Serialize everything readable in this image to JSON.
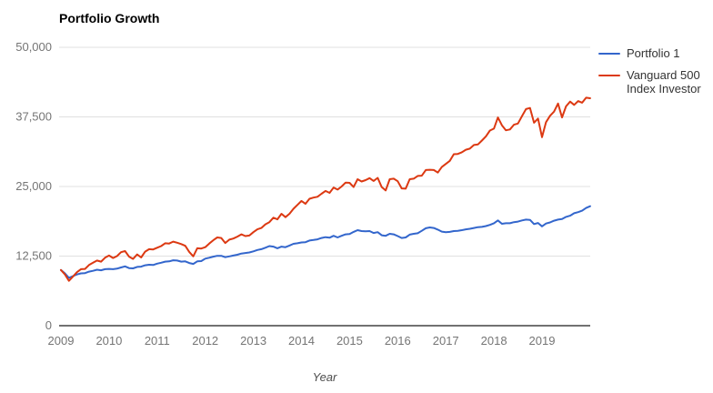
{
  "title": "Portfolio Growth",
  "legend": {
    "items": [
      {
        "label": "Portfolio 1",
        "color": "#3366cc"
      },
      {
        "label": "Vanguard 500 Index Investor",
        "color": "#dc3912"
      }
    ]
  },
  "colors": {
    "gridline": "#e0e0e0",
    "baseline": "#424242",
    "tick_text": "#757575"
  },
  "chart_data": {
    "type": "line",
    "title": "Portfolio Growth",
    "xlabel": "Year",
    "ylabel": "",
    "grid": true,
    "legend_position": "right",
    "xlim": [
      2009,
      2020.1
    ],
    "ylim": [
      0,
      50000
    ],
    "x_ticks": [
      2009,
      2010,
      2011,
      2012,
      2013,
      2014,
      2015,
      2016,
      2017,
      2018,
      2019
    ],
    "y_ticks": [
      0,
      12500,
      25000,
      37500,
      50000
    ],
    "y_tick_labels": [
      "0",
      "12,500",
      "25,000",
      "37,500",
      "50,000"
    ],
    "x_start": 2009.0,
    "x_step": 0.08333,
    "x_unit": "monthly portfolio value, Jan 2009 - Dec 2019, starting at 10000",
    "series": [
      {
        "name": "Portfolio 1",
        "color": "#3366cc",
        "values": [
          10000,
          9400,
          8600,
          8900,
          9200,
          9400,
          9450,
          9700,
          9850,
          10050,
          9950,
          10150,
          10200,
          10150,
          10250,
          10450,
          10650,
          10350,
          10300,
          10550,
          10600,
          10850,
          10950,
          10900,
          11150,
          11300,
          11500,
          11550,
          11750,
          11700,
          11500,
          11550,
          11250,
          11100,
          11550,
          11600,
          12050,
          12200,
          12400,
          12550,
          12550,
          12300,
          12450,
          12600,
          12750,
          12950,
          13050,
          13150,
          13350,
          13600,
          13750,
          14000,
          14300,
          14200,
          13900,
          14200,
          14100,
          14400,
          14700,
          14800,
          14950,
          15000,
          15300,
          15400,
          15500,
          15750,
          15900,
          15800,
          16150,
          15850,
          16150,
          16400,
          16450,
          16850,
          17150,
          17000,
          16950,
          17000,
          16650,
          16800,
          16250,
          16150,
          16500,
          16400,
          16100,
          15750,
          15850,
          16350,
          16500,
          16600,
          17050,
          17500,
          17650,
          17550,
          17250,
          16900,
          16800,
          16850,
          17000,
          17050,
          17150,
          17300,
          17400,
          17550,
          17700,
          17750,
          17900,
          18100,
          18400,
          18900,
          18300,
          18400,
          18400,
          18600,
          18700,
          18900,
          19050,
          19000,
          18250,
          18450,
          17850,
          18350,
          18550,
          18850,
          19050,
          19150,
          19550,
          19750,
          20200,
          20400,
          20650,
          21150,
          21450
        ]
      },
      {
        "name": "Vanguard 500 Index Investor",
        "color": "#dc3912",
        "values": [
          10000,
          9200,
          8050,
          8800,
          9600,
          10150,
          10200,
          10900,
          11300,
          11700,
          11500,
          12200,
          12600,
          12150,
          12500,
          13200,
          13400,
          12400,
          12000,
          12800,
          12250,
          13300,
          13750,
          13700,
          14000,
          14300,
          14800,
          14750,
          15100,
          14900,
          14650,
          14350,
          13250,
          12450,
          13900,
          13850,
          14100,
          14750,
          15350,
          15850,
          15750,
          14850,
          15450,
          15650,
          16000,
          16400,
          16100,
          16200,
          16800,
          17300,
          17550,
          18200,
          18600,
          19400,
          19100,
          20100,
          19500,
          20100,
          21000,
          21700,
          22400,
          21900,
          22800,
          23000,
          23150,
          23700,
          24200,
          23850,
          24800,
          24450,
          25000,
          25700,
          25650,
          24900,
          26300,
          25900,
          26150,
          26500,
          26000,
          26550,
          24900,
          24300,
          26300,
          26400,
          25950,
          24650,
          24600,
          26300,
          26400,
          26900,
          26950,
          27950,
          28000,
          27950,
          27500,
          28500,
          29050,
          29600,
          30800,
          30850,
          31150,
          31600,
          31800,
          32450,
          32550,
          33250,
          34000,
          35050,
          35400,
          37400,
          36000,
          35100,
          35250,
          36100,
          36300,
          37650,
          38900,
          39100,
          36450,
          37200,
          33850,
          36550,
          37700,
          38450,
          39900,
          37400,
          39400,
          40250,
          39650,
          40350,
          40050,
          40950,
          40850
        ]
      }
    ]
  }
}
